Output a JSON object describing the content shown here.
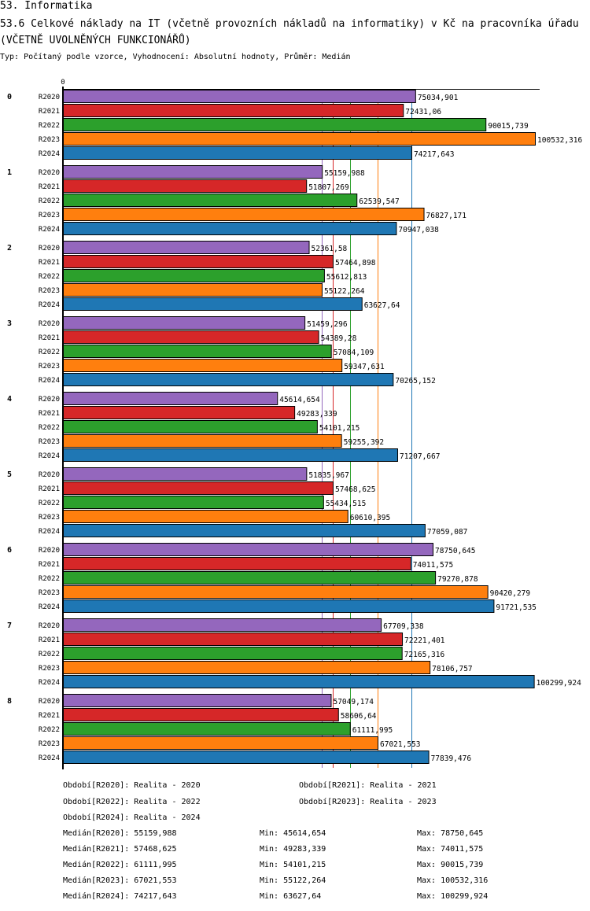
{
  "header": {
    "section": "53. Informatika",
    "title": "53.6 Celkové náklady na IT (včetně provozních nákladů na informatiky) v Kč na pracovníka úřadu (VČETNĚ UVOLNĚNÝCH FUNKCIONÁŘŮ)",
    "subtitle": "Typ: Počítaný podle vzorce, Vyhodnocení: Absolutní hodnoty, Průměr: Medián"
  },
  "chart_data": {
    "type": "bar",
    "orientation": "horizontal",
    "title": "53.6 Celkové náklady na IT (včetně provozních nákladů na informatiky) v Kč na pracovníka úřadu (VČETNĚ UVOLNĚNÝCH FUNKCIONÁŘŮ)",
    "xlabel": "",
    "ylabel": "",
    "axis_tick_label": "0",
    "xlim": [
      0,
      100532.316
    ],
    "grid": false,
    "categories": [
      "0",
      "1",
      "2",
      "3",
      "4",
      "5",
      "6",
      "7",
      "8"
    ],
    "series": [
      {
        "name": "R2020",
        "color": "#9467bd",
        "values": [
          75034.901,
          55159.988,
          52361.58,
          51459.296,
          45614.654,
          51835.967,
          78750.645,
          67709.338,
          57049.174
        ],
        "labels": [
          "75034,901",
          "55159,988",
          "52361,58",
          "51459,296",
          "45614,654",
          "51835,967",
          "78750,645",
          "67709,338",
          "57049,174"
        ]
      },
      {
        "name": "R2021",
        "color": "#d62728",
        "values": [
          72431.06,
          51807.269,
          57464.898,
          54389.28,
          49283.339,
          57468.625,
          74011.575,
          72221.401,
          58606.64
        ],
        "labels": [
          "72431,06",
          "51807,269",
          "57464,898",
          "54389,28",
          "49283,339",
          "57468,625",
          "74011,575",
          "72221,401",
          "58606,64"
        ]
      },
      {
        "name": "R2022",
        "color": "#2ca02c",
        "values": [
          90015.739,
          62539.547,
          55612.813,
          57084.109,
          54101.215,
          55434.515,
          79270.878,
          72165.316,
          61111.995
        ],
        "labels": [
          "90015,739",
          "62539,547",
          "55612,813",
          "57084,109",
          "54101,215",
          "55434,515",
          "79270,878",
          "72165,316",
          "61111,995"
        ]
      },
      {
        "name": "R2023",
        "color": "#ff7f0e",
        "values": [
          100532.316,
          76827.171,
          55122.264,
          59347.631,
          59255.392,
          60610.395,
          90420.279,
          78106.757,
          67021.553
        ],
        "labels": [
          "100532,316",
          "76827,171",
          "55122,264",
          "59347,631",
          "59255,392",
          "60610,395",
          "90420,279",
          "78106,757",
          "67021,553"
        ]
      },
      {
        "name": "R2024",
        "color": "#1f77b4",
        "values": [
          74217.643,
          70947.038,
          63627.64,
          70265.152,
          71207.667,
          77059.087,
          91721.535,
          100299.924,
          77839.476
        ],
        "labels": [
          "74217,643",
          "70947,038",
          "63627,64",
          "70265,152",
          "71207,667",
          "77059,087",
          "91721,535",
          "100299,924",
          "77839,476"
        ]
      }
    ],
    "median_lines": [
      {
        "series": "R2020",
        "value": 55159.988
      },
      {
        "series": "R2021",
        "value": 57468.625
      },
      {
        "series": "R2022",
        "value": 61111.995
      },
      {
        "series": "R2023",
        "value": 67021.553
      },
      {
        "series": "R2024",
        "value": 74217.643
      }
    ]
  },
  "legend": {
    "periods": [
      "Období[R2020]: Realita - 2020",
      "Období[R2021]: Realita - 2021",
      "Období[R2022]: Realita - 2022",
      "Období[R2023]: Realita - 2023",
      "Období[R2024]: Realita - 2024"
    ],
    "stats": [
      {
        "median": "Medián[R2020]: 55159,988",
        "min": "Min: 45614,654",
        "max": "Max: 78750,645"
      },
      {
        "median": "Medián[R2021]: 57468,625",
        "min": "Min: 49283,339",
        "max": "Max: 74011,575"
      },
      {
        "median": "Medián[R2022]: 61111,995",
        "min": "Min: 54101,215",
        "max": "Max: 90015,739"
      },
      {
        "median": "Medián[R2023]: 67021,553",
        "min": "Min: 55122,264",
        "max": "Max: 100532,316"
      },
      {
        "median": "Medián[R2024]: 74217,643",
        "min": "Min: 63627,64",
        "max": "Max: 100299,924"
      }
    ]
  }
}
